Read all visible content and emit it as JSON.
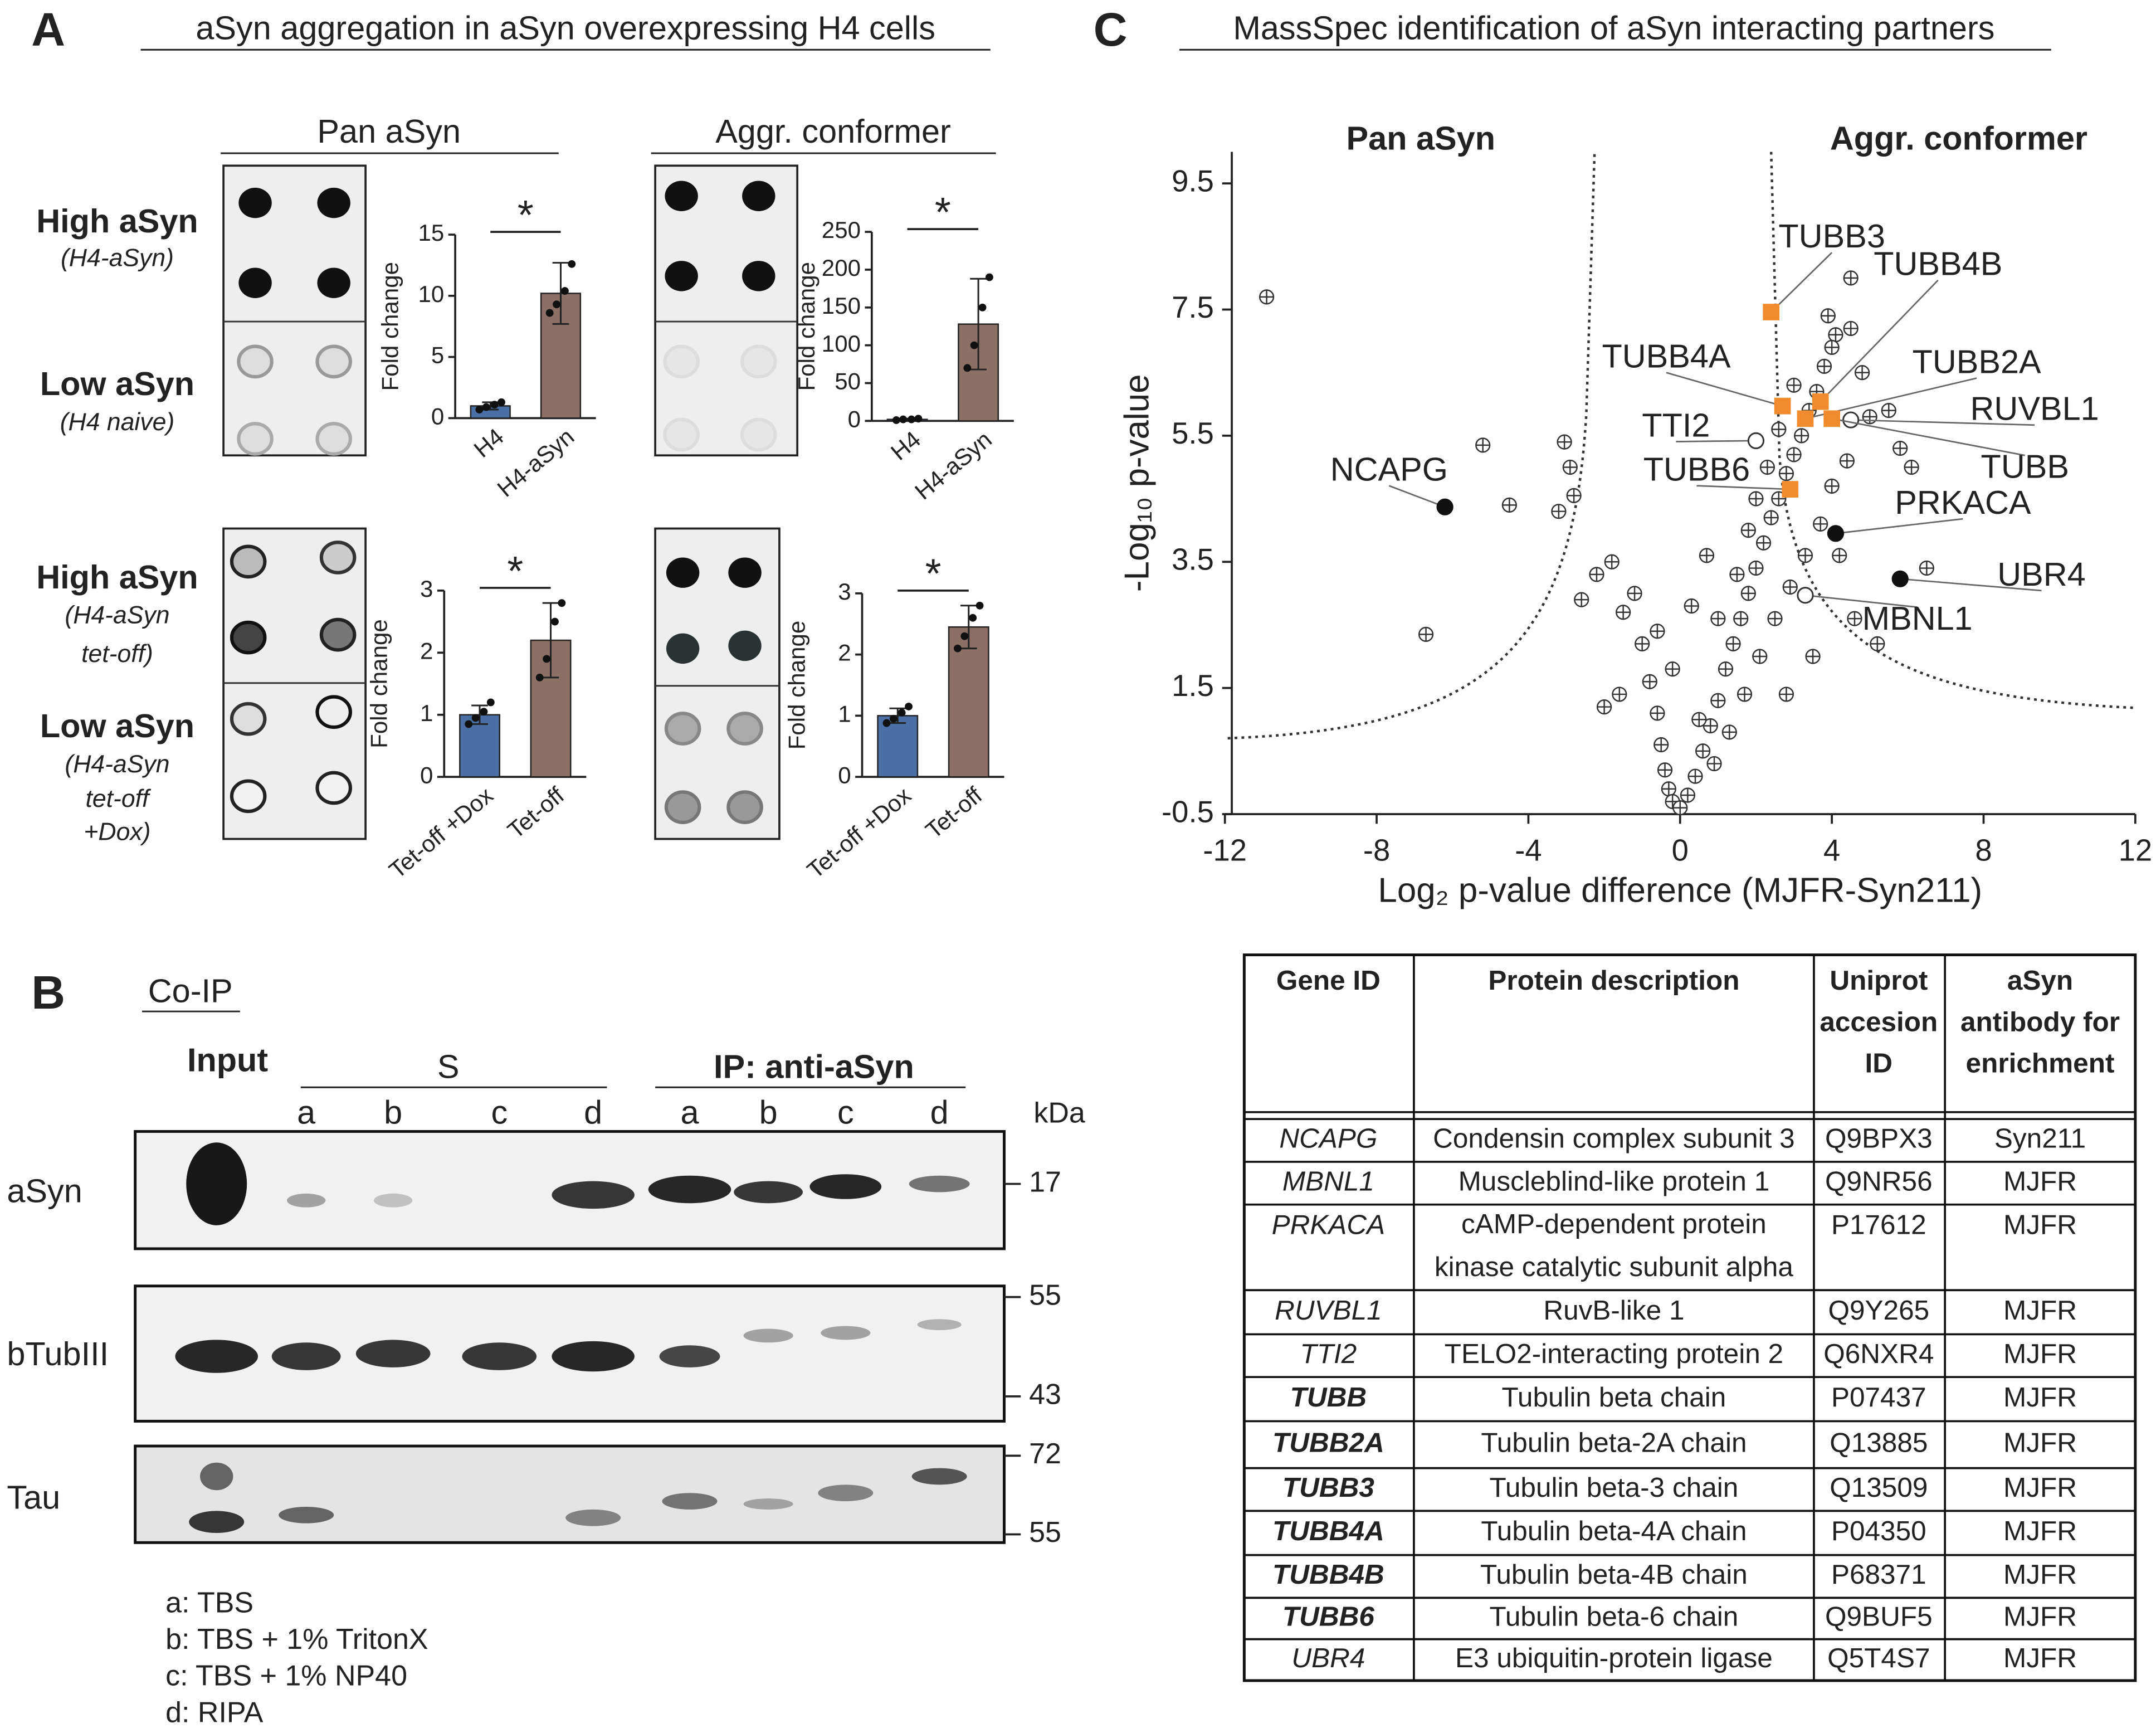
{
  "panel_labels": [
    "A",
    "B",
    "C"
  ],
  "panel_a": {
    "title": "aSyn aggregation in aSyn overexpressing H4 cells",
    "column_headers": [
      "Pan aSyn",
      "Aggr. conformer"
    ],
    "conformer_color": "#3f2d9c",
    "row_labels": [
      {
        "name": "High aSyn",
        "detail": [
          "(H4-aSyn)"
        ]
      },
      {
        "name": "Low aSyn",
        "detail": [
          "(H4 naive)"
        ]
      },
      {
        "name": "High aSyn",
        "detail": [
          "(H4-aSyn",
          "tet-off)"
        ]
      },
      {
        "name": "Low aSyn",
        "detail": [
          "(H4-aSyn",
          "tet-off",
          "+Dox)"
        ]
      }
    ]
  },
  "chart_data": [
    {
      "type": "bar",
      "ylabel": "Fold change",
      "categories": [
        "H4",
        "H4-aSyn"
      ],
      "values": [
        1.0,
        10.2
      ],
      "errors": [
        0.3,
        2.5
      ],
      "points": [
        [
          0.7,
          0.9,
          1.1,
          1.3
        ],
        [
          8.6,
          9.3,
          10.4,
          12.6
        ]
      ],
      "colors": [
        "#4a6fa5",
        "#8c7066"
      ],
      "annotation": "*",
      "ylim": [
        0,
        15
      ],
      "yticks": [
        0,
        5,
        10,
        15
      ]
    },
    {
      "type": "bar",
      "ylabel": "Fold change",
      "categories": [
        "H4",
        "H4-aSyn"
      ],
      "values": [
        2,
        128
      ],
      "errors": [
        1,
        60
      ],
      "points": [
        [
          1,
          2,
          2,
          3
        ],
        [
          70,
          100,
          150,
          190
        ]
      ],
      "colors": [
        "#4a6fa5",
        "#8c7066"
      ],
      "annotation": "*",
      "ylim": [
        0,
        250
      ],
      "yticks": [
        0,
        50,
        100,
        150,
        200,
        250
      ]
    },
    {
      "type": "bar",
      "ylabel": "Fold change",
      "categories": [
        "Tet-off +Dox",
        "Tet-off"
      ],
      "values": [
        1.0,
        2.2
      ],
      "errors": [
        0.15,
        0.6
      ],
      "points": [
        [
          0.85,
          0.95,
          1.05,
          1.2
        ],
        [
          1.6,
          1.9,
          2.5,
          2.8
        ]
      ],
      "colors": [
        "#4a6fa5",
        "#8c7066"
      ],
      "annotation": "*",
      "ylim": [
        0,
        3
      ],
      "yticks": [
        0,
        1,
        2,
        3
      ]
    },
    {
      "type": "bar",
      "ylabel": "Fold change",
      "categories": [
        "Tet-off +Dox",
        "Tet-off"
      ],
      "values": [
        1.0,
        2.45
      ],
      "errors": [
        0.12,
        0.35
      ],
      "points": [
        [
          0.88,
          0.95,
          1.05,
          1.15
        ],
        [
          2.1,
          2.3,
          2.6,
          2.8
        ]
      ],
      "colors": [
        "#4a6fa5",
        "#8c7066"
      ],
      "annotation": "*",
      "ylim": [
        0,
        3
      ],
      "yticks": [
        0,
        1,
        2,
        3
      ]
    },
    {
      "type": "scatter",
      "annotations": [
        "Pan aSyn",
        "Aggr. conformer"
      ],
      "annotation_colors": [
        "#111111",
        "#3f2d9c"
      ],
      "xlabel": "Log₂ p-value difference (MJFR-Syn211)",
      "ylabel": "-Log₁₀ p-value",
      "xlim": [
        -12,
        12
      ],
      "xticks": [
        -12,
        -8,
        -4,
        0,
        4,
        8,
        12
      ],
      "ylim": [
        -0.5,
        10
      ],
      "yticks": [
        -0.5,
        1.5,
        3.5,
        5.5,
        7.5,
        9.5
      ],
      "color": "#333333",
      "x": [
        -10.9,
        -6.7,
        -5.2,
        -4.5,
        -3.2,
        -3.05,
        -2.9,
        -2.8,
        -1.5,
        -1.2,
        -1.0,
        -0.8,
        -0.6,
        -0.5,
        -0.4,
        -0.3,
        -0.2,
        0,
        0.2,
        0.4,
        0.6,
        0.8,
        1.0,
        1.2,
        1.4,
        1.6,
        1.8,
        2.0,
        2.2,
        2.4,
        2.6,
        2.8,
        3.0,
        3.2,
        3.4,
        3.6,
        3.8,
        4.1,
        4.5,
        4.0,
        4.8,
        5.0,
        5.5,
        5.8,
        6.1,
        6.5,
        0.5,
        0.9,
        1.3,
        1.7,
        2.1,
        2.5,
        2.9,
        3.3,
        3.7,
        4.0,
        4.4,
        1.0,
        1.5,
        2.0,
        2.3,
        0.7,
        0.3,
        -0.2,
        -0.6,
        -1.8,
        -2.2,
        -2.6,
        -1.6,
        -2.0,
        1.8,
        2.6,
        3.0,
        4.2,
        4.6,
        5.2,
        3.5,
        2.8,
        4.5,
        3.9
      ],
      "y": [
        7.7,
        2.35,
        5.35,
        4.4,
        4.3,
        5.4,
        5.0,
        4.55,
        2.7,
        3.0,
        2.2,
        1.6,
        1.1,
        0.6,
        0.2,
        -0.1,
        -0.3,
        -0.4,
        -0.2,
        0.1,
        0.5,
        0.9,
        1.3,
        1.8,
        2.2,
        2.6,
        3.0,
        3.4,
        3.8,
        4.2,
        4.5,
        4.9,
        5.2,
        5.5,
        5.9,
        6.2,
        6.6,
        7.1,
        8.0,
        6.9,
        6.5,
        5.8,
        5.9,
        5.3,
        5.0,
        3.4,
        1.0,
        0.3,
        0.8,
        1.4,
        2.0,
        2.6,
        3.1,
        3.6,
        4.1,
        4.7,
        5.1,
        2.6,
        3.3,
        4.5,
        5.0,
        3.6,
        2.8,
        1.8,
        2.4,
        3.5,
        3.3,
        2.9,
        1.4,
        1.2,
        4.0,
        5.6,
        6.3,
        3.6,
        2.6,
        2.2,
        2.0,
        1.4,
        7.2,
        7.4
      ],
      "highlights": [
        {
          "label": "TUBB3",
          "x": 2.4,
          "y": 7.46,
          "color": "#f28a2e",
          "marker": "square"
        },
        {
          "label": "TUBB4B",
          "x": 3.7,
          "y": 6.04,
          "color": "#f28a2e",
          "marker": "square"
        },
        {
          "label": "TUBB4A",
          "x": 2.7,
          "y": 5.97,
          "color": "#f28a2e",
          "marker": "square"
        },
        {
          "label": "TUBB2A",
          "x": 3.3,
          "y": 5.77,
          "color": "#f28a2e",
          "marker": "square"
        },
        {
          "label": "RUVBL1",
          "x": 4.5,
          "y": 5.75,
          "color": "#333333",
          "marker": "open"
        },
        {
          "label": "TTI2",
          "x": 2.0,
          "y": 5.42,
          "color": "#333333",
          "marker": "open"
        },
        {
          "label": "TUBB",
          "x": 4.0,
          "y": 5.77,
          "color": "#f28a2e",
          "marker": "square"
        },
        {
          "label": "TUBB6",
          "x": 2.9,
          "y": 4.65,
          "color": "#f28a2e",
          "marker": "square"
        },
        {
          "label": "NCAPG",
          "x": -6.2,
          "y": 4.37,
          "color": "#111111",
          "marker": "filled"
        },
        {
          "label": "PRKACA",
          "x": 4.1,
          "y": 3.95,
          "color": "#111111",
          "marker": "filled"
        },
        {
          "label": "UBR4",
          "x": 5.8,
          "y": 3.23,
          "color": "#111111",
          "marker": "filled"
        },
        {
          "label": "MBNL1",
          "x": 3.3,
          "y": 2.97,
          "color": "#333333",
          "marker": "open"
        }
      ]
    }
  ],
  "panel_b": {
    "title": "Co-IP",
    "input": "Input",
    "groups": [
      "S",
      "IP: anti-aSyn"
    ],
    "lanes": [
      "a",
      "b",
      "c",
      "d",
      "a",
      "b",
      "c",
      "d"
    ],
    "unit": "kDa",
    "blots": [
      {
        "label": "aSyn",
        "markers": [
          17
        ]
      },
      {
        "label": "bTubIII",
        "markers": [
          55,
          43
        ]
      },
      {
        "label": "Tau",
        "markers": [
          72,
          55
        ]
      }
    ],
    "legend": [
      "a: TBS",
      "b: TBS + 1% TritonX",
      "c: TBS + 1%  NP40",
      "d: RIPA"
    ]
  },
  "panel_c": {
    "title": "MassSpec identification of aSyn interacting partners"
  },
  "table": {
    "header": [
      [
        "Gene ID"
      ],
      [
        "Protein description"
      ],
      [
        "Uniprot",
        "accesion",
        "ID"
      ],
      [
        "aSyn",
        "antibody for",
        "enrichment"
      ]
    ],
    "rows": [
      [
        "NCAPG",
        "Condensin complex subunit 3",
        "Q9BPX3",
        "Syn211"
      ],
      [
        "MBNL1",
        "Muscleblind-like protein 1",
        "Q9NR56",
        "MJFR"
      ],
      [
        "PRKACA",
        [
          "cAMP-dependent protein",
          "kinase catalytic subunit alpha"
        ],
        "P17612",
        "MJFR"
      ],
      [
        "RUVBL1",
        "RuvB-like 1",
        "Q9Y265",
        "MJFR"
      ],
      [
        "TTI2",
        "TELO2-interacting protein 2",
        "Q6NXR4",
        "MJFR"
      ],
      [
        "TUBB",
        "Tubulin beta chain",
        "P07437",
        "MJFR"
      ],
      [
        "TUBB2A",
        "Tubulin beta-2A chain",
        "Q13885",
        "MJFR"
      ],
      [
        "TUBB3",
        "Tubulin beta-3 chain",
        "Q13509",
        "MJFR"
      ],
      [
        "TUBB4A",
        "Tubulin beta-4A chain",
        "P04350",
        "MJFR"
      ],
      [
        "TUBB4B",
        "Tubulin beta-4B chain",
        "P68371",
        "MJFR"
      ],
      [
        "TUBB6",
        "Tubulin beta-6 chain",
        "Q9BUF5",
        "MJFR"
      ],
      [
        "UBR4",
        "E3 ubiquitin-protein ligase",
        "Q5T4S7",
        "MJFR"
      ]
    ],
    "highlighted_rows": [
      5,
      6,
      7,
      8,
      9,
      10
    ],
    "highlight_color": "#d9731c"
  }
}
